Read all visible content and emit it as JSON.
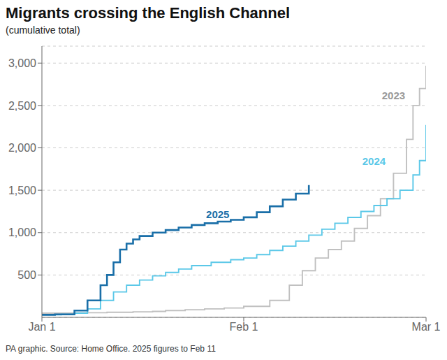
{
  "chart_data": {
    "type": "step",
    "title": "Migrants crossing the English Channel",
    "subtitle": "(cumulative total)",
    "source": "PA graphic. Source: Home Office. 2025 figures to Feb 11",
    "xlim": [
      0,
      59
    ],
    "xticks": [
      {
        "value": 0,
        "label": "Jan 1"
      },
      {
        "value": 31,
        "label": "Feb 1"
      },
      {
        "value": 59,
        "label": "Mar 1"
      }
    ],
    "ylim": [
      0,
      3200
    ],
    "yticks": [
      500,
      {
        "value": 1000,
        "label": "1,000"
      },
      {
        "value": 1500,
        "label": "1,500"
      },
      {
        "value": 2000,
        "label": "2,000"
      },
      {
        "value": 2500,
        "label": "2,500"
      },
      {
        "value": 3000,
        "label": "3,000"
      }
    ],
    "grid": true,
    "series": [
      {
        "name": "2023",
        "color": "#c0c0c0",
        "x": [
          0,
          5,
          10,
          14,
          17,
          19,
          22,
          25,
          28,
          31,
          35,
          38,
          40,
          42,
          44,
          46,
          48,
          50,
          52,
          54,
          56,
          57,
          58,
          59
        ],
        "values": [
          50,
          55,
          60,
          65,
          70,
          80,
          90,
          100,
          110,
          130,
          200,
          380,
          550,
          700,
          800,
          900,
          1050,
          1200,
          1400,
          1700,
          2100,
          2500,
          2700,
          2970
        ]
      },
      {
        "name": "2024",
        "color": "#5bc8e8",
        "x": [
          0,
          3,
          5,
          7,
          9,
          11,
          13,
          15,
          17,
          19,
          21,
          23,
          26,
          29,
          31,
          33,
          35,
          37,
          39,
          41,
          43,
          45,
          47,
          49,
          51,
          53,
          55,
          57,
          58,
          59
        ],
        "values": [
          30,
          35,
          50,
          100,
          200,
          300,
          380,
          440,
          490,
          530,
          570,
          610,
          650,
          680,
          700,
          740,
          790,
          840,
          900,
          970,
          1040,
          1110,
          1180,
          1250,
          1320,
          1400,
          1500,
          1680,
          1850,
          2270
        ]
      },
      {
        "name": "2025",
        "color": "#1a6fa8",
        "x": [
          0,
          2,
          5,
          7,
          9,
          10,
          11,
          12,
          13,
          14,
          15,
          17,
          19,
          21,
          23,
          25,
          27,
          29,
          31,
          33,
          35,
          37,
          39,
          41
        ],
        "values": [
          30,
          35,
          80,
          200,
          380,
          500,
          650,
          800,
          870,
          920,
          960,
          1000,
          1030,
          1060,
          1090,
          1110,
          1130,
          1150,
          1180,
          1240,
          1310,
          1390,
          1460,
          1560
        ]
      }
    ],
    "annotations": [
      {
        "text": "2023",
        "x": 52,
        "y": 2620,
        "color": "#999999"
      },
      {
        "text": "2024",
        "x": 49,
        "y": 1840,
        "color": "#5bc8e8"
      },
      {
        "text": "2025",
        "x": 25,
        "y": 1215,
        "color": "#1a6fa8"
      }
    ]
  }
}
